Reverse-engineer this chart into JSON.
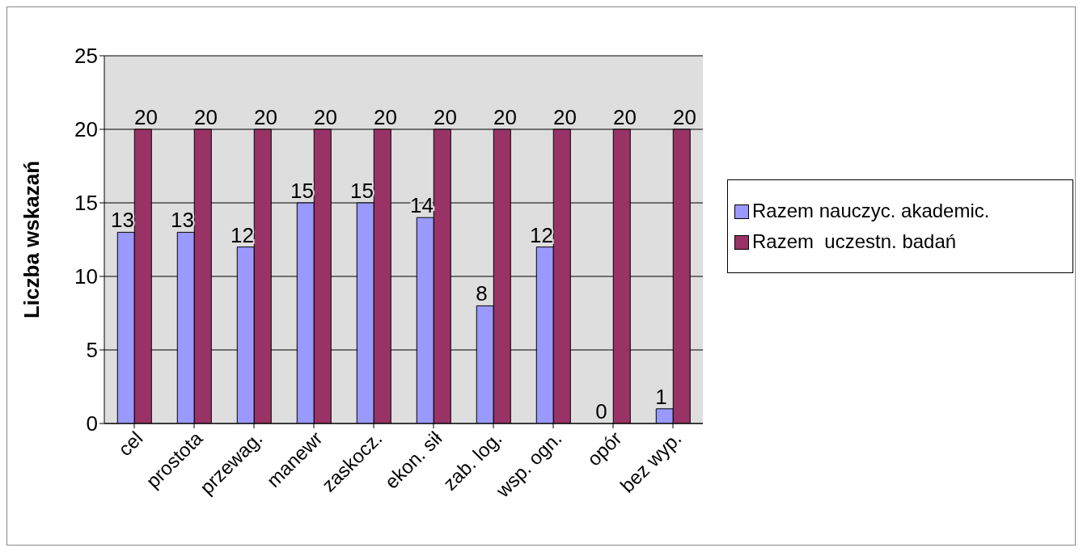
{
  "chart_data": {
    "type": "bar",
    "ylabel": "Liczba wskazań",
    "categories": [
      "cel",
      "prostota",
      "przewag.",
      "manewr",
      "zaskocz.",
      "ekon. sił",
      "zab. log.",
      "wsp. ogn.",
      "opór",
      "bez wyp."
    ],
    "series": [
      {
        "name": "Razem nauczyc. akademic.",
        "color": "#9999ff",
        "values": [
          13,
          13,
          12,
          15,
          15,
          14,
          8,
          12,
          0,
          1
        ]
      },
      {
        "name": "Razem  uczestn. badań",
        "color": "#993366",
        "values": [
          20,
          20,
          20,
          20,
          20,
          20,
          20,
          20,
          20,
          20
        ]
      }
    ],
    "ylim": [
      0,
      25
    ],
    "yticks": [
      0,
      5,
      10,
      15,
      20,
      25
    ],
    "grid": "y",
    "legend": "right",
    "data_labels": true
  }
}
